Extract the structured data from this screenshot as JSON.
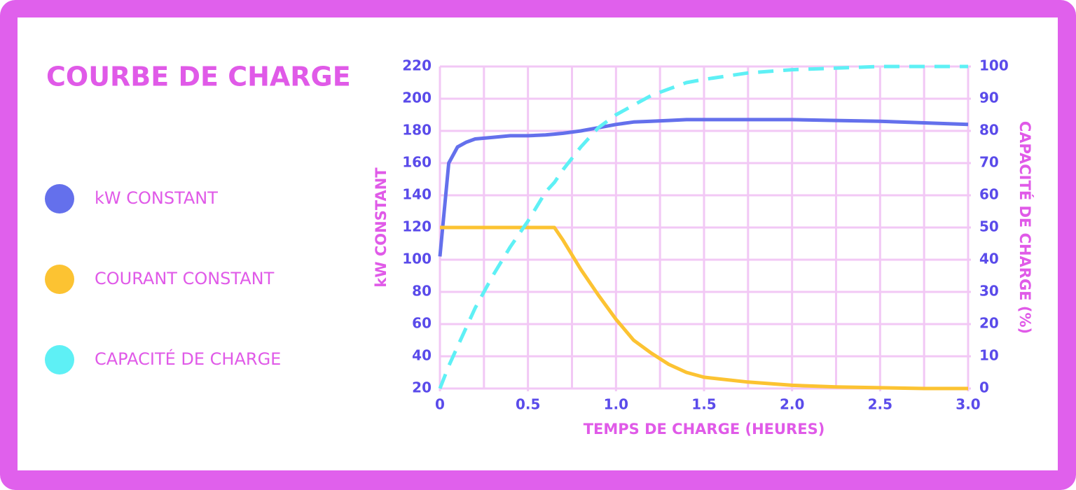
{
  "chart_data": {
    "type": "line",
    "title": "COURBE DE CHARGE",
    "x_label": "TEMPS DE CHARGE (HEURES)",
    "y_label": "kW CONSTANT",
    "y2_label": "CAPACITÉ DE CHARGE (%)",
    "x": [
      0,
      0.05,
      0.1,
      0.15,
      0.2,
      0.3,
      0.4,
      0.5,
      0.6,
      0.65,
      0.7,
      0.8,
      0.9,
      1.0,
      1.1,
      1.2,
      1.3,
      1.4,
      1.5,
      1.75,
      2.0,
      2.25,
      2.5,
      2.75,
      3.0
    ],
    "series": [
      {
        "name": "kW CONSTANT",
        "color": "#6470ec",
        "line_style": "solid",
        "values": [
          102,
          160,
          170,
          173,
          175,
          176,
          177,
          177,
          177.5,
          178,
          178.5,
          180,
          182,
          184,
          185.5,
          186,
          186.5,
          187,
          187,
          187,
          187,
          186.5,
          186,
          185,
          184
        ]
      },
      {
        "name": "COURANT CONSTANT",
        "color": "#fcc332",
        "line_style": "solid",
        "values": [
          120,
          120,
          120,
          120,
          120,
          120,
          120,
          120,
          120,
          120,
          112,
          94,
          78,
          63,
          50,
          42,
          35,
          30,
          27,
          24,
          22,
          21,
          20.5,
          20,
          20
        ]
      },
      {
        "name": "CAPACITÉ DE CHARGE",
        "color": "#5ef0f5",
        "line_style": "dashed",
        "axis": "y2",
        "values": [
          0,
          7,
          13,
          19,
          25,
          35,
          44,
          52,
          61,
          64,
          68,
          75,
          81,
          85,
          88,
          91,
          93,
          95,
          96,
          98,
          99,
          99.5,
          100,
          100,
          100
        ]
      }
    ],
    "xlim": [
      0,
      3
    ],
    "xticks": [
      0,
      0.5,
      {
        "value": 1,
        "label": "1.0"
      },
      1.5,
      {
        "value": 2,
        "label": "2.0"
      },
      2.5,
      {
        "value": 3,
        "label": "3.0"
      }
    ],
    "x_gridlines": [
      0,
      0.25,
      0.5,
      0.75,
      1,
      1.25,
      1.5,
      1.75,
      2,
      2.25,
      2.5,
      2.75,
      3
    ],
    "ylim": [
      20,
      220
    ],
    "yticks": [
      20,
      40,
      60,
      80,
      100,
      120,
      140,
      160,
      180,
      200,
      220
    ],
    "y2lim": [
      0,
      100
    ],
    "y2ticks": [
      0,
      10,
      20,
      30,
      40,
      50,
      60,
      70,
      80,
      90,
      100
    ],
    "grid": true,
    "legend": "left"
  }
}
